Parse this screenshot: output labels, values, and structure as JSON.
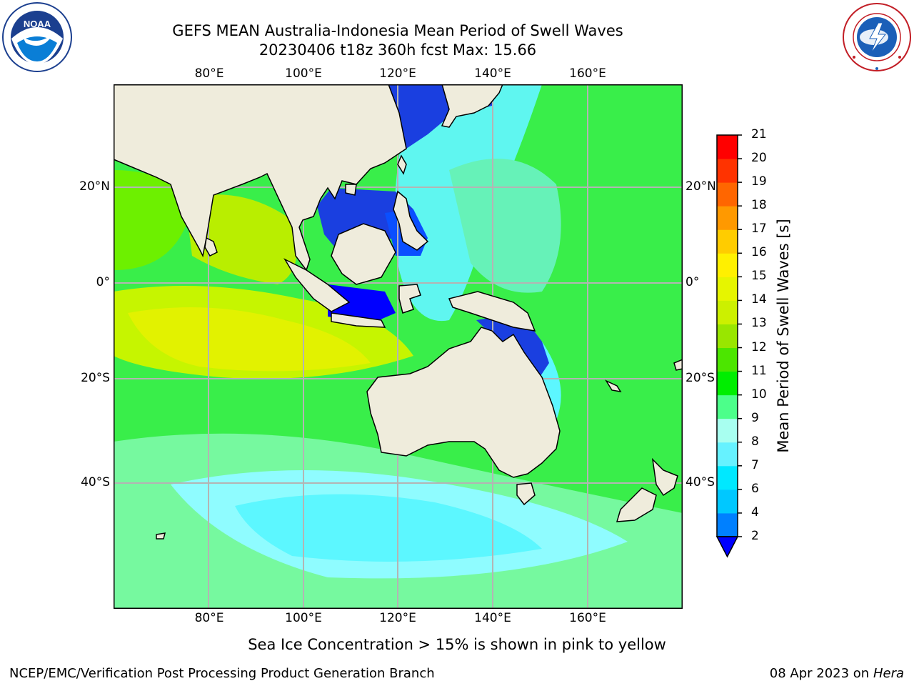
{
  "header": {
    "title_line1": "GEFS MEAN Australia-Indonesia Mean Period of Swell Waves",
    "title_line2": "20230406 t18z 360h fcst   Max: 15.66"
  },
  "logos": {
    "left": {
      "name": "noaa-logo",
      "text": "NOAA",
      "ring_text": "NATIONAL OCEANIC AND ATMOSPHERIC ADMINISTRATION · U.S. DEPARTMENT OF COMMERCE"
    },
    "right": {
      "name": "nws-logo",
      "ring_text": "NATIONAL WEATHER SERVICE"
    }
  },
  "map": {
    "lon_ticks": [
      "80°E",
      "100°E",
      "120°E",
      "140°E",
      "160°E"
    ],
    "lat_ticks_left": [
      "20°N",
      "0°",
      "20°S",
      "40°S"
    ],
    "lat_ticks_right": [
      "20°N",
      "0°",
      "20°S",
      "40°S"
    ],
    "extent": {
      "lon": [
        60,
        180
      ],
      "lat": [
        -62,
        40
      ]
    },
    "colors": {
      "land": "#efecdc",
      "grid": "#b4b4b4",
      "coast": "#000000"
    }
  },
  "colorbar": {
    "title": "Mean Period of Swell Waves [s]",
    "labels": [
      "2",
      "4",
      "6",
      "7",
      "8",
      "9",
      "10",
      "11",
      "12",
      "13",
      "14",
      "15",
      "16",
      "17",
      "18",
      "19",
      "20",
      "21"
    ],
    "colors": [
      "#1a3fe0",
      "#0080ff",
      "#00c8ff",
      "#00e8ff",
      "#66f2ff",
      "#a8fff0",
      "#4cff8a",
      "#00ee00",
      "#4ce600",
      "#99e600",
      "#ccf000",
      "#e6f500",
      "#fff000",
      "#ffcc00",
      "#ff9900",
      "#ff6600",
      "#ff3300",
      "#ff0000"
    ],
    "under_color": "#0000ff"
  },
  "footer": {
    "caption": "Sea Ice Concentration > 15% is shown in pink to yellow",
    "left": "NCEP/EMC/Verification Post Processing Product Generation Branch",
    "right_date": "08 Apr 2023 on ",
    "right_host": "Hera"
  }
}
